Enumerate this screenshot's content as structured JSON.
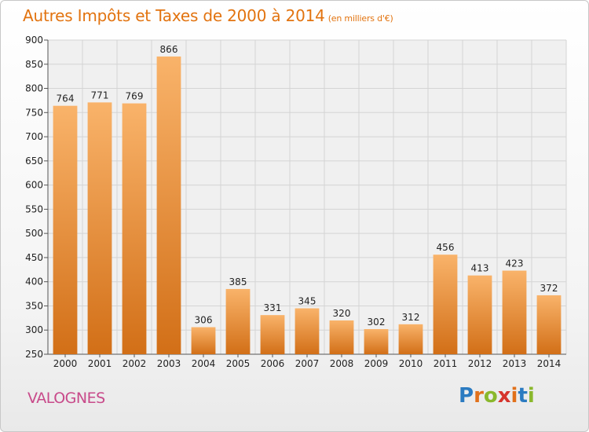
{
  "header": {
    "title": "Autres Impôts et Taxes de 2000 à 2014",
    "subtitle": "(en milliers d'€)"
  },
  "footer": {
    "town": "VALOGNES",
    "logo_letters": [
      "P",
      "r",
      "o",
      "x",
      "i",
      "t",
      "i"
    ],
    "logo_colors": [
      "#2b7bc1",
      "#e1711b",
      "#8ab82c",
      "#d6342c",
      "#e1711b",
      "#2b7bc1",
      "#8ab82c"
    ]
  },
  "colors": {
    "accent": "#e2730f",
    "town": "#c84a8a",
    "bar_top": "#f9b36a",
    "bar_bottom": "#d26f17"
  },
  "chart_data": {
    "type": "bar",
    "title": "Autres Impôts et Taxes de 2000 à 2014",
    "subtitle": "(en milliers d'€)",
    "categories": [
      "2000",
      "2001",
      "2002",
      "2003",
      "2004",
      "2005",
      "2006",
      "2007",
      "2008",
      "2009",
      "2010",
      "2011",
      "2012",
      "2013",
      "2014"
    ],
    "values": [
      764,
      771,
      769,
      866,
      306,
      385,
      331,
      345,
      320,
      302,
      312,
      456,
      413,
      423,
      372
    ],
    "ylim": [
      250,
      900
    ],
    "yticks": [
      250,
      300,
      350,
      400,
      450,
      500,
      550,
      600,
      650,
      700,
      750,
      800,
      850,
      900
    ],
    "grid": true,
    "xlabel": "",
    "ylabel": ""
  }
}
